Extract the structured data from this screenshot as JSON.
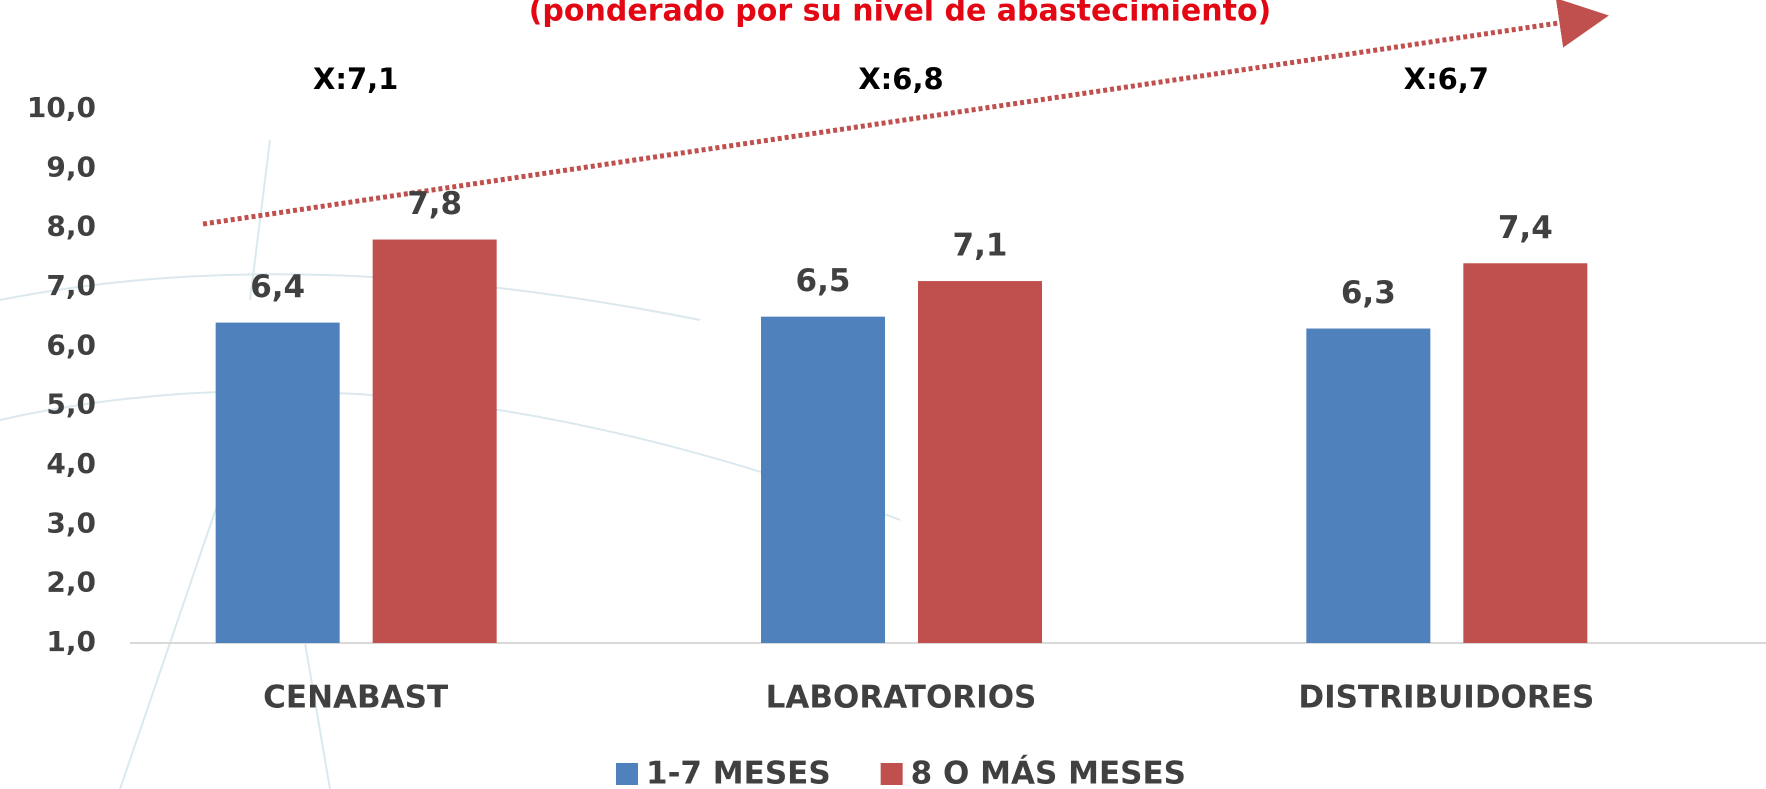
{
  "chart_data": {
    "type": "bar",
    "title": "(ponderado por su nivel de abastecimiento)",
    "annotations": [
      "X:7,1",
      "X:6,8",
      "X:6,7"
    ],
    "categories": [
      "CENABAST",
      "LABORATORIOS",
      "DISTRIBUIDORES"
    ],
    "series": [
      {
        "name": "1-7 MESES",
        "color": "#4f81bd",
        "values": [
          6.4,
          6.5,
          6.3
        ],
        "value_labels": [
          "6,4",
          "6,5",
          "6,3"
        ]
      },
      {
        "name": "8 O MÁS MESES",
        "color": "#c0504d",
        "values": [
          7.8,
          7.1,
          7.4
        ],
        "value_labels": [
          "7,8",
          "7,1",
          "7,4"
        ]
      }
    ],
    "ylim": [
      1,
      10
    ],
    "yticks": [
      {
        "value": 1,
        "label": "1,0"
      },
      {
        "value": 2,
        "label": "2,0"
      },
      {
        "value": 3,
        "label": "3,0"
      },
      {
        "value": 4,
        "label": "4,0"
      },
      {
        "value": 5,
        "label": "5,0"
      },
      {
        "value": 6,
        "label": "6,0"
      },
      {
        "value": 7,
        "label": "7,0"
      },
      {
        "value": 8,
        "label": "8,0"
      },
      {
        "value": 9,
        "label": "9,0"
      },
      {
        "value": 10,
        "label": "10,0"
      }
    ],
    "legend": "bottom"
  }
}
